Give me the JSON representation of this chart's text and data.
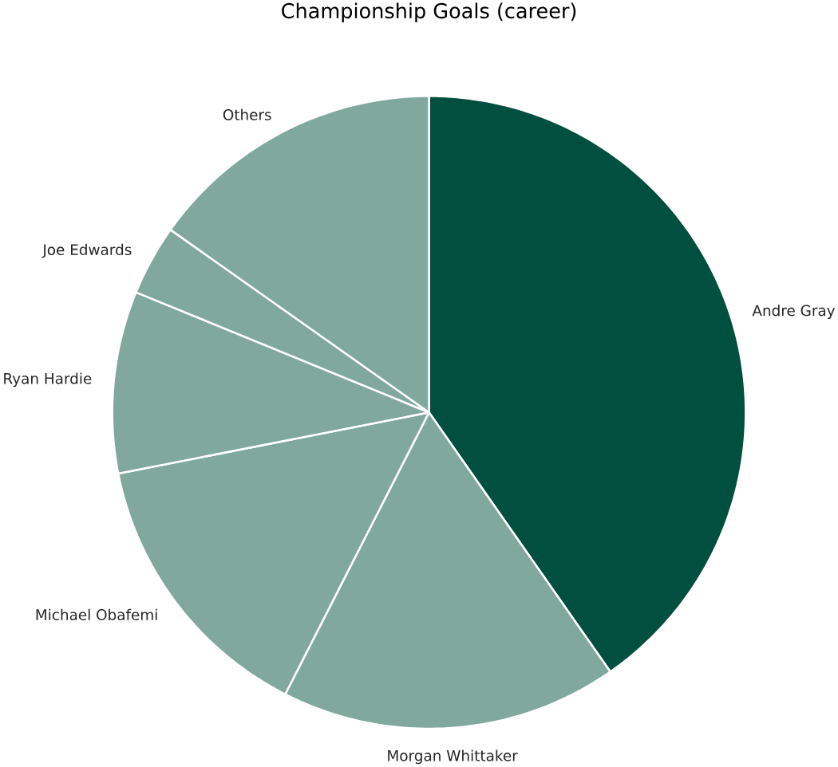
{
  "chart_data": {
    "type": "pie",
    "title": "Championship Goals (career)",
    "categories": [
      "Andre Gray",
      "Morgan Whittaker",
      "Michael Obafemi",
      "Ryan Hardie",
      "Joe Edwards",
      "Others"
    ],
    "values": [
      40.3,
      17.2,
      14.4,
      9.3,
      3.6,
      15.2
    ],
    "colors": [
      "#004f3f",
      "#80a89c",
      "#80a89c",
      "#80a89c",
      "#80a89c",
      "#80a89c"
    ]
  }
}
